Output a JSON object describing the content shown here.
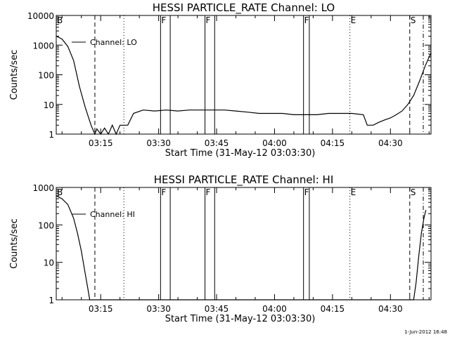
{
  "timestamp": "1-Jun-2012 16:48",
  "chart_data": [
    {
      "type": "line",
      "title": "HESSI PARTICLE_RATE Channel: LO",
      "xlabel": "Start Time (31-May-12 03:03:30)",
      "ylabel": "Counts/sec",
      "yscale": "log",
      "ylim": [
        1,
        10000
      ],
      "xlim": [
        "03:03:30",
        "04:40:30"
      ],
      "xticks": [
        "03:15",
        "03:30",
        "03:45",
        "04:00",
        "04:15",
        "04:30"
      ],
      "yticks": [
        "1",
        "10",
        "100",
        "1000",
        "10000"
      ],
      "legend": "top-left",
      "series": [
        {
          "name": "Channel: LO",
          "x": [
            "03:03:30",
            "03:05:00",
            "03:06:30",
            "03:08:00",
            "03:09:30",
            "03:11:00",
            "03:12:30",
            "03:13:30",
            "03:14:00",
            "03:15:00",
            "03:16:00",
            "03:17:00",
            "03:18:00",
            "03:19:00",
            "03:20:00",
            "03:21:00",
            "03:22:00",
            "03:23:30",
            "03:26:00",
            "03:29:00",
            "03:32:00",
            "03:35:00",
            "03:38:00",
            "03:41:00",
            "03:44:00",
            "03:47:00",
            "03:50:00",
            "03:53:00",
            "03:56:00",
            "03:59:00",
            "04:02:00",
            "04:05:00",
            "04:08:00",
            "04:11:00",
            "04:14:00",
            "04:17:00",
            "04:20:00",
            "04:23:00",
            "04:24:00",
            "04:25:30",
            "04:27:00",
            "04:28:30",
            "04:30:00",
            "04:31:30",
            "04:33:00",
            "04:34:30",
            "04:36:00",
            "04:37:30",
            "04:39:00",
            "04:40:30"
          ],
          "y": [
            2000,
            1600,
            900,
            300,
            40,
            8,
            2,
            1,
            1.5,
            1,
            1.6,
            1,
            2,
            1,
            2,
            2,
            2,
            5,
            6.5,
            6,
            6.5,
            6,
            6.5,
            6.5,
            6.5,
            6.5,
            6,
            5.5,
            5,
            5,
            5,
            4.5,
            4.5,
            4.5,
            5,
            5,
            5,
            4.5,
            2,
            2,
            2.5,
            3,
            3.5,
            4.5,
            6,
            10,
            20,
            60,
            200,
            550
          ]
        }
      ],
      "markers": [
        {
          "label": "B",
          "time": "03:03:30",
          "style": "solid"
        },
        {
          "label": "",
          "time": "03:13:30",
          "style": "dashed"
        },
        {
          "label": "",
          "time": "03:21:00",
          "style": "dotted"
        },
        {
          "label": "F",
          "time": "03:30:30",
          "style": "solid"
        },
        {
          "label": "",
          "time": "03:33:00",
          "style": "solid"
        },
        {
          "label": "F",
          "time": "03:42:00",
          "style": "solid"
        },
        {
          "label": "",
          "time": "03:44:30",
          "style": "solid"
        },
        {
          "label": "F",
          "time": "04:07:30",
          "style": "solid"
        },
        {
          "label": "",
          "time": "04:09:00",
          "style": "solid"
        },
        {
          "label": "E",
          "time": "04:19:30",
          "style": "dotted"
        },
        {
          "label": "S",
          "time": "04:35:00",
          "style": "dashed"
        },
        {
          "label": "",
          "time": "04:38:30",
          "style": "dashdot"
        }
      ]
    },
    {
      "type": "line",
      "title": "HESSI PARTICLE_RATE Channel: HI",
      "xlabel": "Start Time (31-May-12 03:03:30)",
      "ylabel": "Counts/sec",
      "yscale": "log",
      "ylim": [
        1,
        1000
      ],
      "xlim": [
        "03:03:30",
        "04:40:30"
      ],
      "xticks": [
        "03:15",
        "03:30",
        "03:45",
        "04:00",
        "04:15",
        "04:30"
      ],
      "yticks": [
        "1",
        "10",
        "100",
        "1000"
      ],
      "legend": "top-left",
      "series": [
        {
          "name": "Channel: HI",
          "x": [
            "03:03:30",
            "03:05:00",
            "03:06:30",
            "03:08:00",
            "03:09:00",
            "03:10:00",
            "03:11:00",
            "03:11:40",
            "03:12:10",
            "04:36:00",
            "04:36:40",
            "04:37:20",
            "04:38:00",
            "04:38:40",
            "04:39:10"
          ],
          "y": [
            600,
            500,
            350,
            150,
            60,
            20,
            5,
            2,
            1,
            1,
            3,
            15,
            60,
            150,
            250
          ]
        }
      ],
      "markers": [
        {
          "label": "B",
          "time": "03:03:30",
          "style": "solid"
        },
        {
          "label": "",
          "time": "03:13:30",
          "style": "dashed"
        },
        {
          "label": "",
          "time": "03:21:00",
          "style": "dotted"
        },
        {
          "label": "F",
          "time": "03:30:30",
          "style": "solid"
        },
        {
          "label": "",
          "time": "03:33:00",
          "style": "solid"
        },
        {
          "label": "F",
          "time": "03:42:00",
          "style": "solid"
        },
        {
          "label": "",
          "time": "03:44:30",
          "style": "solid"
        },
        {
          "label": "F",
          "time": "04:07:30",
          "style": "solid"
        },
        {
          "label": "",
          "time": "04:09:00",
          "style": "solid"
        },
        {
          "label": "E",
          "time": "04:19:30",
          "style": "dotted"
        },
        {
          "label": "S",
          "time": "04:35:00",
          "style": "dashed"
        },
        {
          "label": "",
          "time": "04:38:30",
          "style": "dashdot"
        }
      ]
    }
  ]
}
